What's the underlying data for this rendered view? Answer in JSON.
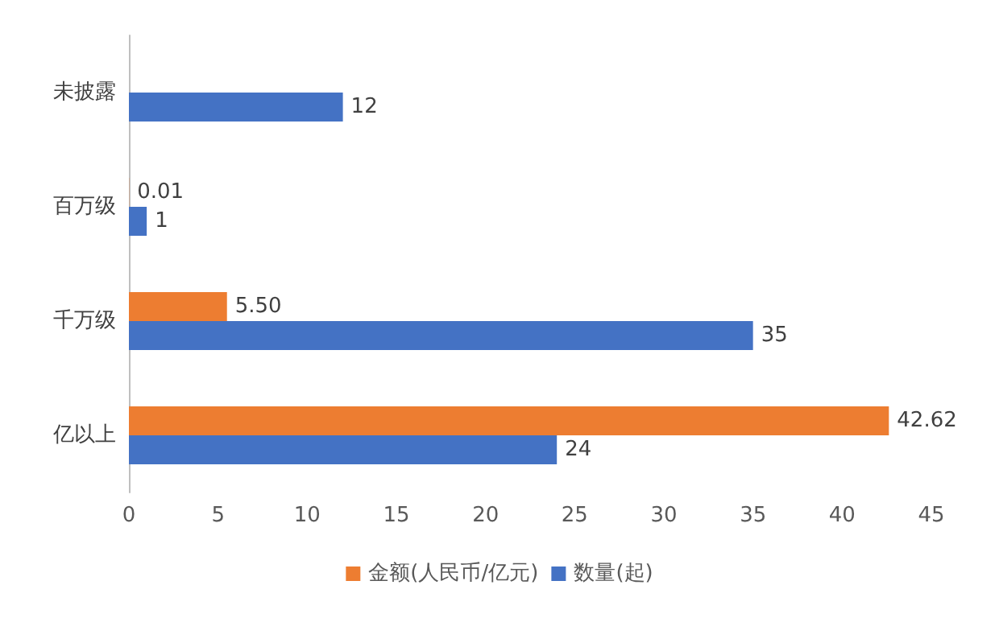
{
  "chart_data": {
    "type": "bar",
    "orientation": "horizontal",
    "categories": [
      "未披露",
      "百万级",
      "千万级",
      "亿以上"
    ],
    "series": [
      {
        "name": "金额(人民币/亿元)",
        "color": "#ed7d31",
        "values": [
          null,
          0.01,
          5.5,
          42.62
        ],
        "value_labels": [
          null,
          "0.01",
          "5.50",
          "42.62"
        ]
      },
      {
        "name": "数量(起)",
        "color": "#4472c4",
        "values": [
          12,
          1,
          35,
          24
        ],
        "value_labels": [
          "12",
          "1",
          "35",
          "24"
        ]
      }
    ],
    "xlim": [
      0,
      45
    ],
    "xticks": [
      0,
      5,
      10,
      15,
      20,
      25,
      30,
      35,
      40,
      45
    ],
    "grid": false,
    "legend": "bottom"
  }
}
